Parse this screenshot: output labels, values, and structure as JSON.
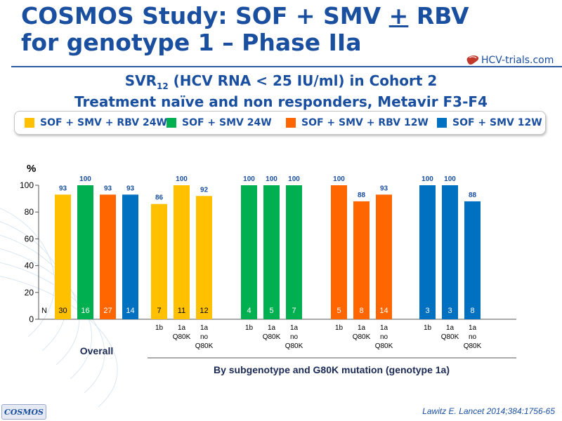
{
  "slide": {
    "title_line1_pre": "COSMOS Study: SOF + SMV ",
    "title_line1_pm": "+",
    "title_line1_post": " RBV",
    "title_line2": "for genotype 1 – Phase IIa",
    "logo_text": "HCV-trials.com",
    "subtitle_line1_pre": "SVR",
    "subtitle_line1_sub": "12",
    "subtitle_line1_post": " (HCV RNA < 25 IU/ml) in Cohort 2",
    "subtitle_line2": "Treatment naïve and non responders, Metavir F3-F4",
    "footer_badge": "COSMOS",
    "citation": "Lawitz  E. Lancet 2014;384:1756-65"
  },
  "legend": [
    {
      "label": "SOF + SMV + RBV 24W",
      "color": "#ffc000",
      "icon": "yellow-square"
    },
    {
      "label": "SOF + SMV 24W",
      "color": "#00b050",
      "icon": "green-square"
    },
    {
      "label": "SOF + SMV + RBV 12W",
      "color": "#ff6600",
      "icon": "orange-square"
    },
    {
      "label": "SOF + SMV 12W",
      "color": "#0070c0",
      "icon": "blue-square"
    }
  ],
  "chart_data": {
    "type": "bar",
    "ylabel": "%",
    "ylim": [
      0,
      100
    ],
    "yticks": [
      "0",
      "20",
      "40",
      "60",
      "80",
      "100"
    ],
    "n_prefix": "N",
    "grid": false,
    "groups": [
      {
        "label": "Overall",
        "bars": [
          {
            "series": "SOF + SMV + RBV 24W",
            "value": 93,
            "n": "30",
            "x_label": []
          },
          {
            "series": "SOF + SMV 24W",
            "value": 100,
            "n": "16",
            "x_label": []
          },
          {
            "series": "SOF + SMV + RBV 12W",
            "value": 93,
            "n": "27",
            "x_label": []
          },
          {
            "series": "SOF + SMV 12W",
            "value": 93,
            "n": "14",
            "x_label": []
          }
        ]
      },
      {
        "label": "",
        "bars": [
          {
            "series": "SOF + SMV + RBV 24W",
            "value": 86,
            "n": "7",
            "x_label": [
              "1b"
            ]
          },
          {
            "series": "SOF + SMV + RBV 24W",
            "value": 100,
            "n": "11",
            "x_label": [
              "1a",
              "Q80K"
            ]
          },
          {
            "series": "SOF + SMV + RBV 24W",
            "value": 92,
            "n": "12",
            "x_label": [
              "1a",
              "no",
              "Q80K"
            ]
          }
        ]
      },
      {
        "label": "",
        "bars": [
          {
            "series": "SOF + SMV 24W",
            "value": 100,
            "n": "4",
            "x_label": [
              "1b"
            ]
          },
          {
            "series": "SOF + SMV 24W",
            "value": 100,
            "n": "5",
            "x_label": [
              "1a",
              "Q80K"
            ]
          },
          {
            "series": "SOF + SMV 24W",
            "value": 100,
            "n": "7",
            "x_label": [
              "1a",
              "no",
              "Q80K"
            ]
          }
        ]
      },
      {
        "label": "",
        "bars": [
          {
            "series": "SOF + SMV + RBV 12W",
            "value": 100,
            "n": "5",
            "x_label": [
              "1b"
            ]
          },
          {
            "series": "SOF + SMV + RBV 12W",
            "value": 88,
            "n": "8",
            "x_label": [
              "1a",
              "Q80K"
            ]
          },
          {
            "series": "SOF + SMV + RBV 12W",
            "value": 93,
            "n": "14",
            "x_label": [
              "1a",
              "no",
              "Q80K"
            ]
          }
        ]
      },
      {
        "label": "",
        "bars": [
          {
            "series": "SOF + SMV 12W",
            "value": 100,
            "n": "3",
            "x_label": [
              "1b"
            ]
          },
          {
            "series": "SOF + SMV 12W",
            "value": 100,
            "n": "3",
            "x_label": [
              "1a",
              "Q80K"
            ]
          },
          {
            "series": "SOF + SMV 12W",
            "value": 88,
            "n": "8",
            "x_label": [
              "1a",
              "no",
              "Q80K"
            ]
          }
        ]
      }
    ],
    "bracket_label": "By subgenotype and G80K mutation (genotype 1a)"
  }
}
